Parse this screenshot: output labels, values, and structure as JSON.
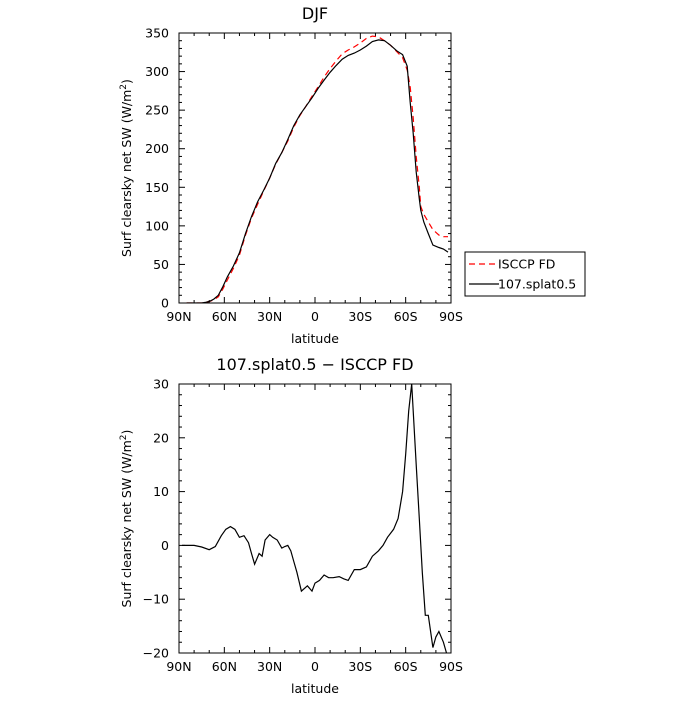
{
  "chart_data": [
    {
      "type": "line",
      "title": "DJF",
      "xlabel": "latitude",
      "ylabel": "Surf clearsky net SW (W/m",
      "ylabel_sup": "2",
      "ylabel_close": ")",
      "xlim": [
        90,
        -90
      ],
      "ylim": [
        0,
        350
      ],
      "x_ticks": [
        90,
        60,
        30,
        0,
        -30,
        -60,
        -90
      ],
      "x_tick_labels": [
        "90N",
        "60N",
        "30N",
        "0",
        "30S",
        "60S",
        "90S"
      ],
      "y_ticks": [
        0,
        50,
        100,
        150,
        200,
        250,
        300,
        350
      ],
      "y_tick_labels": [
        "0",
        "50",
        "100",
        "150",
        "200",
        "250",
        "300",
        "350"
      ],
      "legend_position": "right",
      "series": [
        {
          "name": "ISCCP FD",
          "color": "#ff0000",
          "dash": "dashed",
          "x": [
            85,
            80,
            75,
            72,
            70,
            67,
            64,
            61,
            58,
            54,
            50,
            46,
            42,
            38,
            34,
            30,
            26,
            22,
            18,
            14,
            10,
            6,
            2,
            -2,
            -6,
            -10,
            -14,
            -18,
            -22,
            -26,
            -30,
            -34,
            -38,
            -42,
            -46,
            -50,
            -54,
            -58,
            -61,
            -63,
            -65,
            -67,
            -69,
            -70,
            -72,
            -75,
            -78,
            -82,
            -85,
            -88
          ],
          "y": [
            0,
            0,
            0,
            1,
            2,
            4,
            8,
            18,
            30,
            45,
            62,
            88,
            110,
            128,
            145,
            162,
            180,
            195,
            210,
            228,
            243,
            255,
            268,
            280,
            293,
            304,
            314,
            323,
            328,
            332,
            337,
            343,
            346,
            345,
            340,
            334,
            326,
            318,
            302,
            280,
            240,
            190,
            150,
            125,
            115,
            105,
            95,
            88,
            86,
            86
          ]
        },
        {
          "name": "107.splat0.5",
          "color": "#000000",
          "dash": "solid",
          "x": [
            85,
            80,
            75,
            72,
            70,
            67,
            64,
            61,
            58,
            54,
            50,
            46,
            42,
            38,
            34,
            30,
            26,
            22,
            18,
            14,
            10,
            6,
            2,
            -2,
            -6,
            -10,
            -14,
            -18,
            -22,
            -26,
            -30,
            -34,
            -38,
            -42,
            -46,
            -50,
            -54,
            -58,
            -61,
            -63,
            -65,
            -67,
            -69,
            -70,
            -72,
            -75,
            -78,
            -82,
            -85,
            -88
          ],
          "y": [
            0,
            0,
            0,
            1,
            2,
            5,
            10,
            21,
            34,
            48,
            65,
            90,
            112,
            131,
            146,
            162,
            181,
            195,
            212,
            230,
            244,
            255,
            266,
            278,
            289,
            299,
            308,
            316,
            321,
            324,
            328,
            333,
            339,
            341,
            340,
            334,
            327,
            322,
            307,
            260,
            220,
            170,
            135,
            120,
            105,
            90,
            75,
            72,
            70,
            66
          ]
        }
      ]
    },
    {
      "type": "line",
      "title": "107.splat0.5 − ISCCP FD",
      "xlabel": "latitude",
      "ylabel": "Surf clearsky net SW (W/m",
      "ylabel_sup": "2",
      "ylabel_close": ")",
      "xlim": [
        90,
        -90
      ],
      "ylim": [
        -20,
        30
      ],
      "x_ticks": [
        90,
        60,
        30,
        0,
        -30,
        -60,
        -90
      ],
      "x_tick_labels": [
        "90N",
        "60N",
        "30N",
        "0",
        "30S",
        "60S",
        "90S"
      ],
      "y_ticks": [
        -20,
        -10,
        0,
        10,
        20,
        30
      ],
      "y_tick_labels": [
        "−20",
        "−10",
        "0",
        "10",
        "20",
        "30"
      ],
      "series": [
        {
          "name": "",
          "color": "#000000",
          "dash": "solid",
          "x": [
            88,
            85,
            80,
            75,
            70,
            66,
            62,
            59,
            56,
            53,
            50,
            47,
            44,
            42,
            40,
            37,
            35,
            33,
            30,
            28,
            25,
            22,
            20,
            18,
            16,
            14,
            12,
            9,
            5,
            2,
            0,
            -3,
            -6,
            -9,
            -12,
            -16,
            -19,
            -22,
            -26,
            -30,
            -34,
            -38,
            -42,
            -45,
            -48,
            -52,
            -55,
            -58,
            -60,
            -62,
            -64,
            -65,
            -66,
            -67,
            -69,
            -71,
            -73,
            -75,
            -78,
            -80,
            -82,
            -85,
            -87
          ],
          "y": [
            0,
            0,
            0,
            -0.3,
            -0.8,
            -0.2,
            1.8,
            3,
            3.5,
            3,
            1.5,
            1.8,
            0.5,
            -1.5,
            -3.5,
            -1.5,
            -2,
            1,
            2,
            1.5,
            1,
            -0.5,
            -0.2,
            0,
            -1,
            -3,
            -5,
            -8.5,
            -7.5,
            -8.5,
            -7,
            -6.5,
            -5.5,
            -6,
            -6,
            -5.8,
            -6.2,
            -6.5,
            -4.5,
            -4.5,
            -4,
            -2,
            -1,
            0,
            1.5,
            3,
            5,
            10,
            17,
            25,
            30,
            25,
            20,
            15,
            5,
            -5,
            -13,
            -13,
            -19,
            -17,
            -16,
            -18,
            -20
          ]
        }
      ]
    }
  ]
}
